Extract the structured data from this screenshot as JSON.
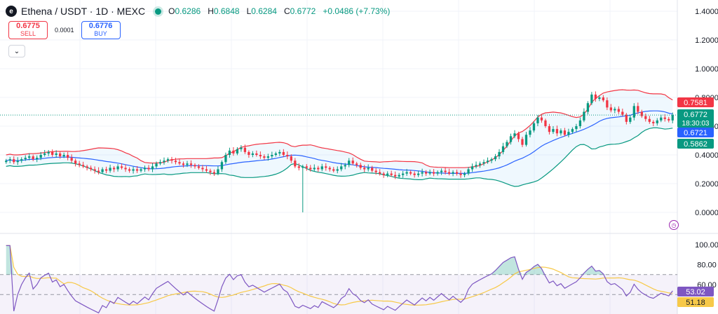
{
  "header": {
    "logo_text": "e",
    "symbol_title": "Ethena / USDT · 1D · MEXC",
    "open_label": "O",
    "open": "0.6286",
    "high_label": "H",
    "high": "0.6848",
    "low_label": "L",
    "low": "0.6284",
    "close_label": "C",
    "close": "0.6772",
    "change": "+0.0486 (+7.73%)"
  },
  "trade": {
    "sell_price": "0.6775",
    "sell_label": "SELL",
    "spread": "0.0001",
    "buy_price": "0.6776",
    "buy_label": "BUY"
  },
  "colors": {
    "up": "#089981",
    "down": "#f23645",
    "bb_upper": "#f23645",
    "bb_lower": "#089981",
    "bb_basis": "#2962ff",
    "rsi": "#7e57c2",
    "rsi_ma": "#f7c948"
  },
  "chart_data": [
    {
      "type": "candlestick",
      "title": "Ethena / USDT · 1D · MEXC",
      "ylim": [
        0.0,
        1.45
      ],
      "y_ticks": [
        "1.4000",
        "1.2000",
        "1.0000",
        "0.8000",
        "0.6000",
        "0.4000",
        "0.2000",
        "0.0000"
      ],
      "y_tick_values": [
        1.4,
        1.2,
        1.0,
        0.8,
        0.6,
        0.4,
        0.2,
        0.0
      ],
      "grid": true,
      "closes": [
        0.36,
        0.37,
        0.35,
        0.36,
        0.37,
        0.38,
        0.39,
        0.37,
        0.38,
        0.4,
        0.41,
        0.42,
        0.4,
        0.41,
        0.39,
        0.4,
        0.38,
        0.36,
        0.34,
        0.33,
        0.32,
        0.31,
        0.3,
        0.29,
        0.28,
        0.3,
        0.29,
        0.31,
        0.3,
        0.32,
        0.31,
        0.3,
        0.29,
        0.3,
        0.29,
        0.3,
        0.31,
        0.3,
        0.32,
        0.34,
        0.35,
        0.36,
        0.37,
        0.36,
        0.35,
        0.34,
        0.33,
        0.34,
        0.33,
        0.32,
        0.31,
        0.3,
        0.29,
        0.28,
        0.27,
        0.3,
        0.35,
        0.4,
        0.43,
        0.41,
        0.44,
        0.45,
        0.42,
        0.4,
        0.41,
        0.4,
        0.39,
        0.38,
        0.39,
        0.4,
        0.41,
        0.42,
        0.4,
        0.39,
        0.36,
        0.32,
        0.31,
        0.32,
        0.31,
        0.3,
        0.31,
        0.3,
        0.32,
        0.31,
        0.3,
        0.29,
        0.3,
        0.32,
        0.33,
        0.36,
        0.34,
        0.33,
        0.31,
        0.3,
        0.31,
        0.29,
        0.28,
        0.27,
        0.26,
        0.27,
        0.26,
        0.25,
        0.26,
        0.27,
        0.28,
        0.27,
        0.26,
        0.27,
        0.28,
        0.27,
        0.28,
        0.27,
        0.28,
        0.29,
        0.28,
        0.27,
        0.28,
        0.27,
        0.26,
        0.27,
        0.3,
        0.32,
        0.33,
        0.34,
        0.35,
        0.36,
        0.37,
        0.39,
        0.42,
        0.46,
        0.49,
        0.53,
        0.55,
        0.51,
        0.47,
        0.54,
        0.57,
        0.62,
        0.66,
        0.64,
        0.6,
        0.56,
        0.58,
        0.55,
        0.57,
        0.54,
        0.56,
        0.58,
        0.6,
        0.64,
        0.7,
        0.76,
        0.82,
        0.79,
        0.8,
        0.78,
        0.73,
        0.71,
        0.72,
        0.7,
        0.68,
        0.63,
        0.66,
        0.74,
        0.7,
        0.67,
        0.65,
        0.63,
        0.62,
        0.64,
        0.66,
        0.65,
        0.64,
        0.6772
      ],
      "last_price": 0.6772,
      "price_labels": [
        {
          "value": 0.7581,
          "text": "0.7581",
          "color": "#f23645"
        },
        {
          "value": 0.6772,
          "text": "0.6772",
          "sub": "18:30:03",
          "color": "#089981"
        },
        {
          "value": 0.6721,
          "text": "0.6721",
          "color": "#2962ff"
        },
        {
          "value": 0.5862,
          "text": "0.5862",
          "color": "#089981"
        }
      ]
    },
    {
      "type": "line",
      "name": "RSI",
      "ylim": [
        0,
        100
      ],
      "y_ticks": [
        "100.00",
        "80.00",
        "60.00"
      ],
      "y_tick_values": [
        100,
        80,
        60
      ],
      "bands": [
        70,
        50
      ],
      "rsi_label": "53.02",
      "rsi_ma_label": "51.18"
    }
  ]
}
